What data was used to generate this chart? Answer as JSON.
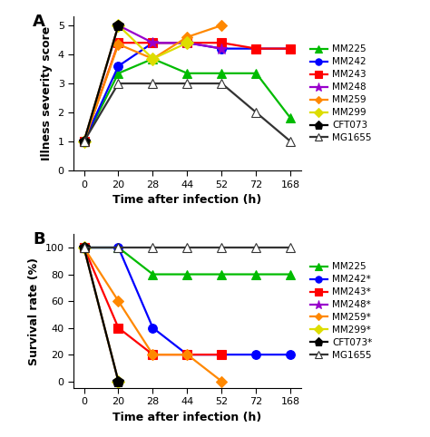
{
  "x_labels": [
    "0",
    "20",
    "28",
    "44",
    "52",
    "72",
    "168"
  ],
  "x_vals": [
    0,
    20,
    28,
    44,
    52,
    72,
    168
  ],
  "panel_A": {
    "title": "A",
    "ylabel": "Illness severity score",
    "xlabel": "Time after infection (h)",
    "ylim": [
      0,
      5.3
    ],
    "yticks": [
      0,
      1,
      2,
      3,
      4,
      5
    ],
    "series": [
      {
        "name": "MM225",
        "color": "#00bb00",
        "marker": "^",
        "mfc": "#00bb00",
        "ms": 7,
        "data": [
          [
            0,
            1
          ],
          [
            20,
            3.35
          ],
          [
            28,
            3.85
          ],
          [
            44,
            3.35
          ],
          [
            52,
            3.35
          ],
          [
            72,
            3.35
          ],
          [
            168,
            1.8
          ]
        ]
      },
      {
        "name": "MM242",
        "color": "#0000ff",
        "marker": "o",
        "mfc": "#0000ff",
        "ms": 7,
        "data": [
          [
            0,
            1
          ],
          [
            20,
            3.6
          ],
          [
            28,
            4.4
          ],
          [
            44,
            4.4
          ],
          [
            52,
            4.2
          ],
          [
            72,
            4.2
          ],
          [
            168,
            4.2
          ]
        ]
      },
      {
        "name": "MM243",
        "color": "#ff0000",
        "marker": "s",
        "mfc": "#ff0000",
        "ms": 7,
        "data": [
          [
            0,
            1
          ],
          [
            20,
            4.4
          ],
          [
            28,
            4.4
          ],
          [
            44,
            4.4
          ],
          [
            52,
            4.4
          ],
          [
            72,
            4.2
          ],
          [
            168,
            4.2
          ]
        ]
      },
      {
        "name": "MM248",
        "color": "#9900cc",
        "marker": "*",
        "mfc": "#9900cc",
        "ms": 9,
        "data": [
          [
            0,
            1
          ],
          [
            20,
            5.0
          ],
          [
            28,
            4.4
          ],
          [
            44,
            4.4
          ],
          [
            52,
            4.2
          ]
        ]
      },
      {
        "name": "MM259",
        "color": "#ff8800",
        "marker": "D",
        "mfc": "#ff8800",
        "ms": 6,
        "data": [
          [
            0,
            1
          ],
          [
            20,
            4.35
          ],
          [
            28,
            3.85
          ],
          [
            44,
            4.6
          ],
          [
            52,
            5.0
          ]
        ]
      },
      {
        "name": "MM299",
        "color": "#dddd00",
        "marker": "D",
        "mfc": "#dddd00",
        "ms": 7,
        "data": [
          [
            0,
            1
          ],
          [
            20,
            5.0
          ],
          [
            28,
            3.85
          ],
          [
            44,
            4.4
          ]
        ]
      },
      {
        "name": "CFT073",
        "color": "#000000",
        "marker": "p",
        "mfc": "#000000",
        "ms": 9,
        "data": [
          [
            0,
            1
          ],
          [
            20,
            5.0
          ]
        ]
      },
      {
        "name": "MG1655",
        "color": "#333333",
        "marker": "^",
        "mfc": "white",
        "ms": 7,
        "data": [
          [
            0,
            1
          ],
          [
            20,
            3.0
          ],
          [
            28,
            3.0
          ],
          [
            44,
            3.0
          ],
          [
            52,
            3.0
          ],
          [
            72,
            2.0
          ],
          [
            168,
            1.0
          ]
        ]
      }
    ]
  },
  "panel_B": {
    "title": "B",
    "ylabel": "Survival rate (%)",
    "xlabel": "Time after infection (h)",
    "ylim": [
      -5,
      110
    ],
    "yticks": [
      0,
      20,
      40,
      60,
      80,
      100
    ],
    "series": [
      {
        "name": "MM225",
        "label": "MM225",
        "color": "#00bb00",
        "marker": "^",
        "mfc": "#00bb00",
        "ms": 7,
        "data": [
          [
            0,
            100
          ],
          [
            20,
            100
          ],
          [
            28,
            80
          ],
          [
            44,
            80
          ],
          [
            52,
            80
          ],
          [
            72,
            80
          ],
          [
            168,
            80
          ]
        ]
      },
      {
        "name": "MM242*",
        "label": "MM242*",
        "color": "#0000ff",
        "marker": "o",
        "mfc": "#0000ff",
        "ms": 7,
        "data": [
          [
            0,
            100
          ],
          [
            20,
            100
          ],
          [
            28,
            40
          ],
          [
            44,
            20
          ],
          [
            52,
            20
          ],
          [
            72,
            20
          ],
          [
            168,
            20
          ]
        ]
      },
      {
        "name": "MM243*",
        "label": "MM243*",
        "color": "#ff0000",
        "marker": "s",
        "mfc": "#ff0000",
        "ms": 7,
        "data": [
          [
            0,
            100
          ],
          [
            20,
            40
          ],
          [
            28,
            20
          ],
          [
            44,
            20
          ],
          [
            52,
            20
          ]
        ]
      },
      {
        "name": "MM248*",
        "label": "MM248*",
        "color": "#9900cc",
        "marker": "*",
        "mfc": "#9900cc",
        "ms": 9,
        "data": [
          [
            0,
            100
          ],
          [
            20,
            0
          ]
        ]
      },
      {
        "name": "MM259*",
        "label": "MM259*",
        "color": "#ff8800",
        "marker": "D",
        "mfc": "#ff8800",
        "ms": 6,
        "data": [
          [
            0,
            100
          ],
          [
            20,
            60
          ],
          [
            28,
            20
          ],
          [
            44,
            20
          ],
          [
            52,
            0
          ]
        ]
      },
      {
        "name": "MM299*",
        "label": "MM299*",
        "color": "#dddd00",
        "marker": "D",
        "mfc": "#dddd00",
        "ms": 7,
        "data": [
          [
            0,
            100
          ],
          [
            20,
            0
          ]
        ]
      },
      {
        "name": "CFT073*",
        "label": "CFT073*",
        "color": "#000000",
        "marker": "p",
        "mfc": "#000000",
        "ms": 9,
        "data": [
          [
            0,
            100
          ],
          [
            20,
            0
          ]
        ]
      },
      {
        "name": "MG1655",
        "label": "MG1655",
        "color": "#333333",
        "marker": "^",
        "mfc": "white",
        "ms": 7,
        "data": [
          [
            0,
            100
          ],
          [
            20,
            100
          ],
          [
            28,
            100
          ],
          [
            44,
            100
          ],
          [
            52,
            100
          ],
          [
            72,
            100
          ],
          [
            168,
            100
          ]
        ]
      }
    ]
  },
  "line_width": 1.6
}
